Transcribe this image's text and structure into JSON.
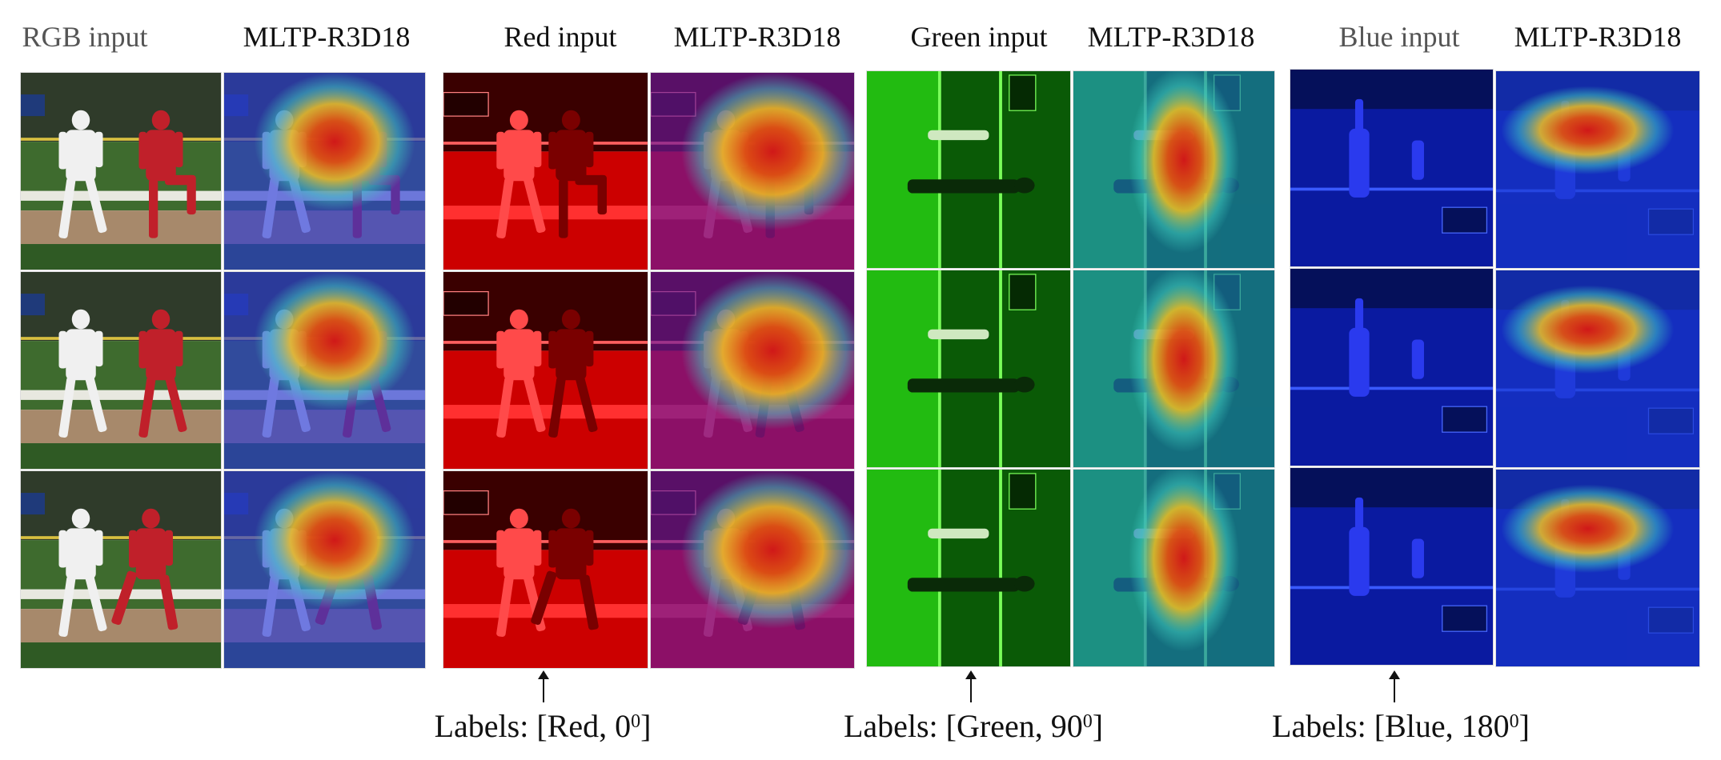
{
  "columns": [
    {
      "key": "rgb_in",
      "header": "RGB input",
      "kind": "rgb",
      "muted": true
    },
    {
      "key": "rgb_map",
      "header": "MLTP-R3D18",
      "kind": "map_rgb",
      "muted": false
    },
    {
      "key": "red_in",
      "header": "Red input",
      "kind": "red",
      "muted": false
    },
    {
      "key": "red_map",
      "header": "MLTP-R3D18",
      "kind": "map_red",
      "muted": false
    },
    {
      "key": "green_in",
      "header": "Green input",
      "kind": "green",
      "muted": false
    },
    {
      "key": "green_map",
      "header": "MLTP-R3D18",
      "kind": "map_green",
      "muted": false
    },
    {
      "key": "blue_in",
      "header": "Blue input",
      "kind": "blue",
      "muted": true
    },
    {
      "key": "blue_map",
      "header": "MLTP-R3D18",
      "kind": "map_blue",
      "muted": false
    }
  ],
  "rows": 3,
  "labels": [
    {
      "prefix": "Labels: [Red, 0",
      "sup": "0",
      "suffix": "]"
    },
    {
      "prefix": "Labels: [Green, 90",
      "sup": "0",
      "suffix": "]"
    },
    {
      "prefix": "Labels: [Blue, 180",
      "sup": "0",
      "suffix": "]"
    }
  ],
  "colors": {
    "rgb_grass": "#3e6b2e",
    "rgb_dirt": "#a7896b",
    "rgb_jersey": "#c0202a",
    "red_base": "#cc0000",
    "green_base": "#22bb11",
    "blue_base": "#0a1aa0",
    "map_blue": "#2a3ad8",
    "map_hot": "#d01818",
    "map_warm": "#f0c020",
    "map_cool": "#40d0c0"
  }
}
